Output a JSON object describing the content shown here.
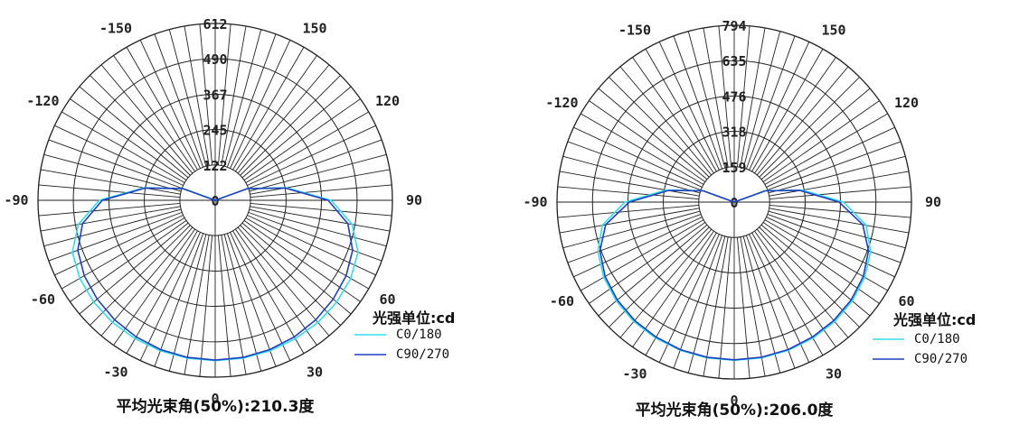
{
  "colors": {
    "c0_180": "#33ddee",
    "c90_270": "#1f3fbf",
    "grid": "#222222"
  },
  "chart_data": [
    {
      "type": "polar-line",
      "angle_ticks": [
        "-150",
        "150",
        "-120",
        "120",
        "-90",
        "90",
        "-60",
        "60",
        "-30",
        "30",
        "0"
      ],
      "angle_tick_values": [
        -150,
        150,
        -120,
        120,
        -90,
        90,
        -60,
        60,
        -30,
        30,
        0
      ],
      "radial_ticks": [
        "612",
        "490",
        "367",
        "245",
        "122",
        "0"
      ],
      "radial_tick_values": [
        612,
        490,
        367,
        245,
        122,
        0
      ],
      "rmax": 612,
      "unit_label": "光强单位:cd",
      "beam_label": "平均光束角(50%):210.3度",
      "series": [
        {
          "name": "C0/180",
          "color_key": "c0_180",
          "angles": [
            -110,
            -100,
            -90,
            -80,
            -70,
            -60,
            -50,
            -40,
            -30,
            -20,
            -10,
            0,
            10,
            20,
            30,
            40,
            50,
            60,
            70,
            80,
            90,
            100,
            110
          ],
          "values": [
            120,
            250,
            400,
            480,
            525,
            540,
            548,
            552,
            553,
            554,
            555,
            555,
            555,
            554,
            553,
            552,
            548,
            540,
            525,
            480,
            400,
            250,
            120
          ]
        },
        {
          "name": "C90/270",
          "color_key": "c90_270",
          "angles": [
            -110,
            -100,
            -90,
            -80,
            -70,
            -60,
            -50,
            -40,
            -30,
            -20,
            -10,
            0,
            10,
            20,
            30,
            40,
            50,
            60,
            70,
            80,
            90,
            100,
            110
          ],
          "values": [
            118,
            245,
            390,
            465,
            505,
            522,
            532,
            540,
            546,
            550,
            552,
            553,
            552,
            550,
            546,
            540,
            532,
            522,
            505,
            465,
            390,
            245,
            118
          ]
        }
      ]
    },
    {
      "type": "polar-line",
      "angle_ticks": [
        "-150",
        "150",
        "-120",
        "120",
        "-90",
        "90",
        "-60",
        "60",
        "-30",
        "30",
        "0"
      ],
      "angle_tick_values": [
        -150,
        150,
        -120,
        120,
        -90,
        90,
        -60,
        60,
        -30,
        30,
        0
      ],
      "radial_ticks": [
        "794",
        "635",
        "476",
        "318",
        "159",
        "0"
      ],
      "radial_tick_values": [
        794,
        635,
        476,
        318,
        159,
        0
      ],
      "rmax": 794,
      "unit_label": "光强单位:cd",
      "beam_label": "平均光束角(50%):206.0度",
      "series": [
        {
          "name": "C0/180",
          "color_key": "c0_180",
          "angles": [
            -110,
            -100,
            -90,
            -80,
            -70,
            -60,
            -50,
            -40,
            -30,
            -20,
            -10,
            0,
            10,
            20,
            30,
            40,
            50,
            60,
            70,
            80,
            90,
            100,
            110
          ],
          "values": [
            150,
            310,
            490,
            600,
            650,
            675,
            690,
            700,
            705,
            708,
            710,
            710,
            710,
            708,
            705,
            700,
            690,
            675,
            650,
            600,
            490,
            310,
            150
          ]
        },
        {
          "name": "C90/270",
          "color_key": "c90_270",
          "angles": [
            -110,
            -100,
            -90,
            -80,
            -70,
            -60,
            -50,
            -40,
            -30,
            -20,
            -10,
            0,
            10,
            20,
            30,
            40,
            50,
            60,
            70,
            80,
            90,
            100,
            110
          ],
          "values": [
            148,
            300,
            470,
            585,
            640,
            668,
            684,
            694,
            700,
            705,
            707,
            708,
            707,
            705,
            700,
            694,
            684,
            668,
            640,
            585,
            470,
            300,
            148
          ]
        }
      ]
    }
  ]
}
